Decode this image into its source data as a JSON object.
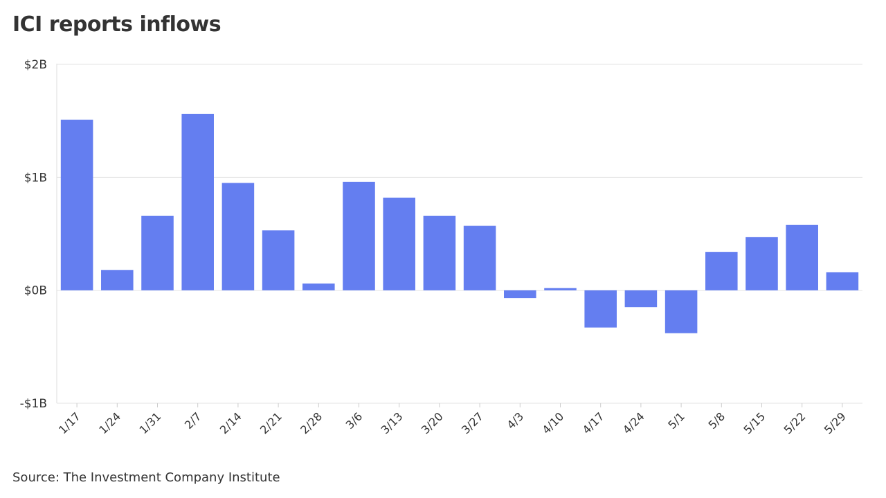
{
  "chart_data": {
    "type": "bar",
    "title": "ICI reports inflows",
    "source": "Source: The Investment Company Institute",
    "categories": [
      "1/17",
      "1/24",
      "1/31",
      "2/7",
      "2/14",
      "2/21",
      "2/28",
      "3/6",
      "3/13",
      "3/20",
      "3/27",
      "4/3",
      "4/10",
      "4/17",
      "4/24",
      "5/1",
      "5/8",
      "5/15",
      "5/22",
      "5/29"
    ],
    "values": [
      1.51,
      0.18,
      0.66,
      1.56,
      0.95,
      0.53,
      0.06,
      0.96,
      0.82,
      0.66,
      0.57,
      -0.07,
      0.02,
      -0.33,
      -0.15,
      -0.38,
      0.34,
      0.47,
      0.58,
      0.16
    ],
    "unit": "billions of dollars",
    "ylim": [
      -1,
      2
    ],
    "yticks": [
      {
        "value": 2,
        "label": "$2B"
      },
      {
        "value": 1,
        "label": "$1B"
      },
      {
        "value": 0,
        "label": "$0B"
      },
      {
        "value": -1,
        "label": "-$1B"
      }
    ],
    "xlabel": "",
    "ylabel": "",
    "grid": true,
    "bar_color": "#647ef0"
  }
}
